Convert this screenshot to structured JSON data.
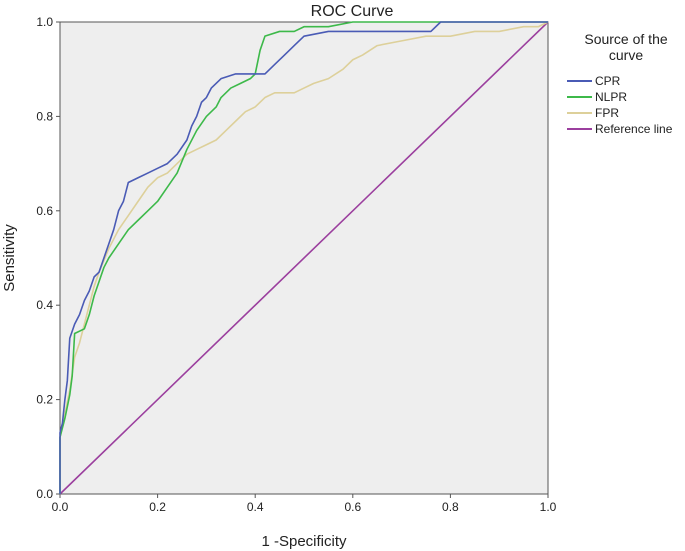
{
  "chart_data": {
    "type": "line",
    "title": "ROC Curve",
    "xlabel": "1 -Specificity",
    "ylabel": "Sensitivity",
    "xlim": [
      0,
      1
    ],
    "ylim": [
      0,
      1
    ],
    "x_ticks": [
      0.0,
      0.2,
      0.4,
      0.6,
      0.8,
      1.0
    ],
    "y_ticks": [
      0.0,
      0.2,
      0.4,
      0.6,
      0.8,
      1.0
    ],
    "x_tick_labels": [
      "0.0",
      "0.2",
      "0.4",
      "0.6",
      "0.8",
      "1.0"
    ],
    "y_tick_labels": [
      "0.0",
      "0.2",
      "0.4",
      "0.6",
      "0.8",
      "1.0"
    ],
    "grid": false,
    "legend": {
      "title": "Source of the curve",
      "title_lines": [
        "Source of the",
        "curve"
      ],
      "placement": "right"
    },
    "plot_background": "#eeeeee",
    "series": [
      {
        "name": "CPR",
        "color": "#4a5bb5",
        "points": [
          [
            0,
            0
          ],
          [
            0,
            0.13
          ],
          [
            0.005,
            0.15
          ],
          [
            0.01,
            0.2
          ],
          [
            0.015,
            0.24
          ],
          [
            0.02,
            0.33
          ],
          [
            0.03,
            0.36
          ],
          [
            0.04,
            0.38
          ],
          [
            0.05,
            0.41
          ],
          [
            0.06,
            0.43
          ],
          [
            0.07,
            0.46
          ],
          [
            0.08,
            0.47
          ],
          [
            0.09,
            0.5
          ],
          [
            0.1,
            0.53
          ],
          [
            0.11,
            0.56
          ],
          [
            0.12,
            0.6
          ],
          [
            0.13,
            0.62
          ],
          [
            0.14,
            0.66
          ],
          [
            0.16,
            0.67
          ],
          [
            0.18,
            0.68
          ],
          [
            0.2,
            0.69
          ],
          [
            0.22,
            0.7
          ],
          [
            0.24,
            0.72
          ],
          [
            0.26,
            0.75
          ],
          [
            0.27,
            0.78
          ],
          [
            0.28,
            0.8
          ],
          [
            0.29,
            0.83
          ],
          [
            0.3,
            0.84
          ],
          [
            0.31,
            0.86
          ],
          [
            0.33,
            0.88
          ],
          [
            0.36,
            0.89
          ],
          [
            0.38,
            0.89
          ],
          [
            0.4,
            0.89
          ],
          [
            0.42,
            0.89
          ],
          [
            0.44,
            0.91
          ],
          [
            0.46,
            0.93
          ],
          [
            0.48,
            0.95
          ],
          [
            0.5,
            0.97
          ],
          [
            0.55,
            0.98
          ],
          [
            0.6,
            0.98
          ],
          [
            0.65,
            0.98
          ],
          [
            0.7,
            0.98
          ],
          [
            0.76,
            0.98
          ],
          [
            0.78,
            1.0
          ],
          [
            1,
            1
          ]
        ]
      },
      {
        "name": "NLPR",
        "color": "#3db94a",
        "points": [
          [
            0,
            0
          ],
          [
            0,
            0.12
          ],
          [
            0.01,
            0.16
          ],
          [
            0.02,
            0.21
          ],
          [
            0.025,
            0.25
          ],
          [
            0.03,
            0.34
          ],
          [
            0.05,
            0.35
          ],
          [
            0.06,
            0.38
          ],
          [
            0.07,
            0.42
          ],
          [
            0.08,
            0.45
          ],
          [
            0.09,
            0.48
          ],
          [
            0.1,
            0.5
          ],
          [
            0.12,
            0.53
          ],
          [
            0.14,
            0.56
          ],
          [
            0.16,
            0.58
          ],
          [
            0.18,
            0.6
          ],
          [
            0.2,
            0.62
          ],
          [
            0.22,
            0.65
          ],
          [
            0.24,
            0.68
          ],
          [
            0.26,
            0.73
          ],
          [
            0.28,
            0.77
          ],
          [
            0.3,
            0.8
          ],
          [
            0.32,
            0.82
          ],
          [
            0.33,
            0.84
          ],
          [
            0.35,
            0.86
          ],
          [
            0.37,
            0.87
          ],
          [
            0.39,
            0.88
          ],
          [
            0.4,
            0.89
          ],
          [
            0.41,
            0.94
          ],
          [
            0.42,
            0.97
          ],
          [
            0.45,
            0.98
          ],
          [
            0.48,
            0.98
          ],
          [
            0.5,
            0.99
          ],
          [
            0.55,
            0.99
          ],
          [
            0.6,
            1.0
          ],
          [
            0.8,
            1.0
          ],
          [
            1,
            1
          ]
        ]
      },
      {
        "name": "FPR",
        "color": "#ddd09a",
        "points": [
          [
            0,
            0
          ],
          [
            0,
            0.12
          ],
          [
            0.01,
            0.17
          ],
          [
            0.02,
            0.22
          ],
          [
            0.03,
            0.29
          ],
          [
            0.04,
            0.32
          ],
          [
            0.05,
            0.36
          ],
          [
            0.06,
            0.4
          ],
          [
            0.07,
            0.44
          ],
          [
            0.08,
            0.47
          ],
          [
            0.1,
            0.52
          ],
          [
            0.12,
            0.56
          ],
          [
            0.14,
            0.59
          ],
          [
            0.16,
            0.62
          ],
          [
            0.18,
            0.65
          ],
          [
            0.2,
            0.67
          ],
          [
            0.22,
            0.68
          ],
          [
            0.24,
            0.7
          ],
          [
            0.26,
            0.72
          ],
          [
            0.28,
            0.73
          ],
          [
            0.3,
            0.74
          ],
          [
            0.32,
            0.75
          ],
          [
            0.34,
            0.77
          ],
          [
            0.36,
            0.79
          ],
          [
            0.38,
            0.81
          ],
          [
            0.4,
            0.82
          ],
          [
            0.42,
            0.84
          ],
          [
            0.44,
            0.85
          ],
          [
            0.46,
            0.85
          ],
          [
            0.48,
            0.85
          ],
          [
            0.5,
            0.86
          ],
          [
            0.52,
            0.87
          ],
          [
            0.55,
            0.88
          ],
          [
            0.58,
            0.9
          ],
          [
            0.6,
            0.92
          ],
          [
            0.62,
            0.93
          ],
          [
            0.65,
            0.95
          ],
          [
            0.7,
            0.96
          ],
          [
            0.75,
            0.97
          ],
          [
            0.8,
            0.97
          ],
          [
            0.85,
            0.98
          ],
          [
            0.9,
            0.98
          ],
          [
            0.95,
            0.99
          ],
          [
            0.98,
            0.99
          ],
          [
            1,
            1
          ]
        ]
      },
      {
        "name": "Reference line",
        "color": "#9b3f9e",
        "points": [
          [
            0,
            0
          ],
          [
            1,
            1
          ]
        ]
      }
    ]
  }
}
